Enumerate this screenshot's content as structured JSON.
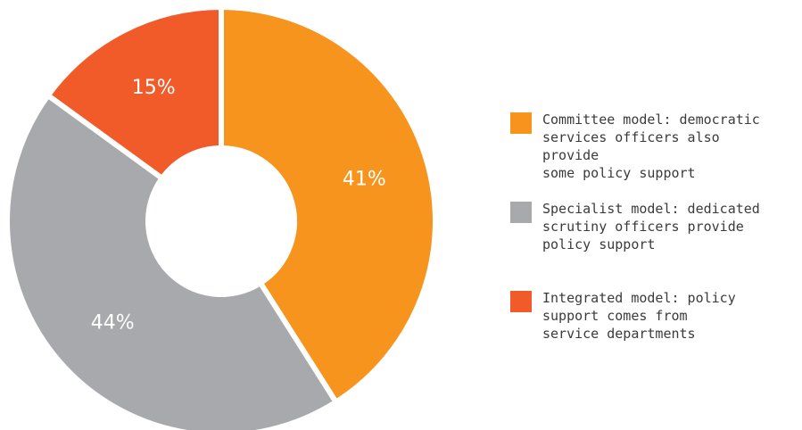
{
  "chart_data": {
    "type": "pie",
    "donut": true,
    "categories": [
      "Committee model: democratic\nservices officers also provide\nsome policy support",
      "Specialist model: dedicated\nscrutiny officers provide\npolicy support",
      "Integrated model: policy\nsupport comes from\nservice departments"
    ],
    "values": [
      41,
      44,
      15
    ],
    "data_labels": [
      "41%",
      "44%",
      "15%"
    ],
    "colors": [
      "#F7941D",
      "#A8A9AD",
      "#F15A29"
    ],
    "legend_position": "right"
  }
}
